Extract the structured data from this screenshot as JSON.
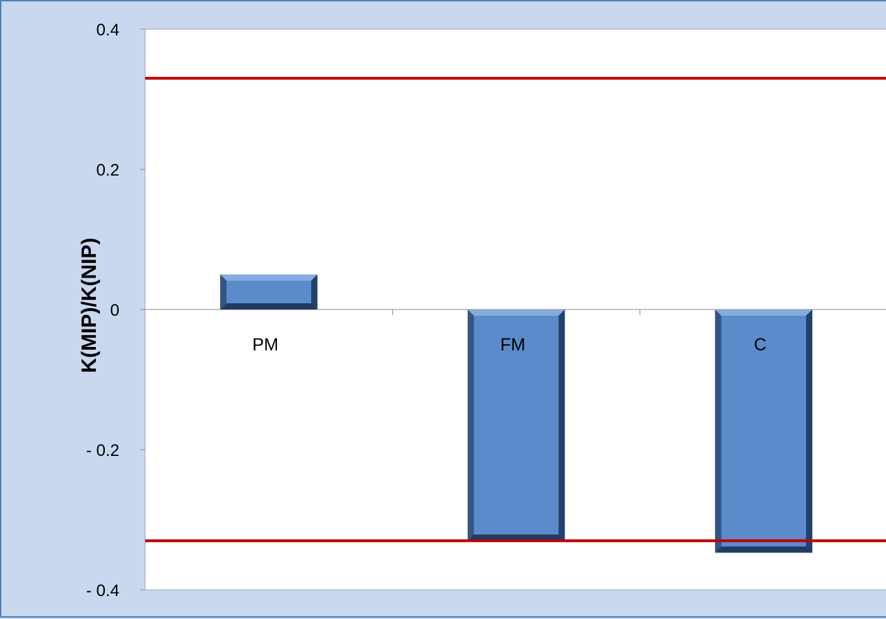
{
  "chart_data": {
    "type": "bar",
    "title": "",
    "xlabel": "",
    "ylabel": "K(MIP)/K(NIP)",
    "categories": [
      "PM",
      "FM",
      "C"
    ],
    "values": [
      0.05,
      -0.33,
      -0.347
    ],
    "ylim": [
      -0.4,
      0.4
    ],
    "yticks": [
      0.4,
      0.2,
      0,
      -0.2,
      -0.4
    ],
    "ytick_labels": [
      "0.4",
      "0.2",
      "0",
      "- 0.2",
      "- 0.4"
    ],
    "reference_lines": [
      0.33,
      -0.33
    ],
    "grid": false,
    "colors": {
      "bar": "#5b8bcb",
      "bar_dark": "#2e4f7d",
      "bar_light": "#8db2e2",
      "reference_line": "#c00000",
      "plot_bg": "#ffffff",
      "outer_bg": "#c9d8ee",
      "frame": "#4f7fc0"
    }
  }
}
